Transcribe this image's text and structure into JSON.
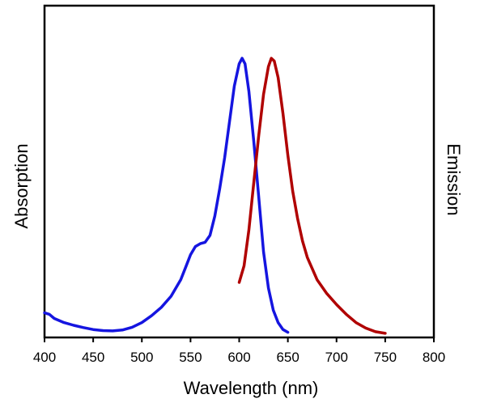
{
  "chart_data": {
    "type": "line",
    "title": "",
    "xlabel": "Wavelength (nm)",
    "ylabel_left": "Absorption",
    "ylabel_right": "Emission",
    "xlim": [
      400,
      800
    ],
    "ylim": [
      0,
      1
    ],
    "xticks": [
      400,
      450,
      500,
      550,
      600,
      650,
      700,
      750,
      800
    ],
    "grid": false,
    "legend": "none",
    "series": [
      {
        "color": "#1515e0",
        "points": [
          [
            400,
            0.08
          ],
          [
            405,
            0.075
          ],
          [
            410,
            0.06
          ],
          [
            420,
            0.045
          ],
          [
            430,
            0.035
          ],
          [
            440,
            0.027
          ],
          [
            450,
            0.02
          ],
          [
            460,
            0.016
          ],
          [
            470,
            0.015
          ],
          [
            480,
            0.018
          ],
          [
            490,
            0.028
          ],
          [
            500,
            0.045
          ],
          [
            510,
            0.07
          ],
          [
            520,
            0.1
          ],
          [
            530,
            0.14
          ],
          [
            540,
            0.2
          ],
          [
            545,
            0.245
          ],
          [
            550,
            0.29
          ],
          [
            555,
            0.32
          ],
          [
            560,
            0.33
          ],
          [
            565,
            0.335
          ],
          [
            570,
            0.36
          ],
          [
            575,
            0.43
          ],
          [
            580,
            0.53
          ],
          [
            585,
            0.64
          ],
          [
            590,
            0.77
          ],
          [
            595,
            0.9
          ],
          [
            600,
            0.98
          ],
          [
            603,
            1.0
          ],
          [
            606,
            0.98
          ],
          [
            610,
            0.88
          ],
          [
            615,
            0.7
          ],
          [
            620,
            0.5
          ],
          [
            625,
            0.3
          ],
          [
            630,
            0.17
          ],
          [
            635,
            0.09
          ],
          [
            640,
            0.045
          ],
          [
            645,
            0.02
          ],
          [
            650,
            0.01
          ]
        ]
      },
      {
        "color": "#b00000",
        "points": [
          [
            600,
            0.19
          ],
          [
            605,
            0.25
          ],
          [
            610,
            0.38
          ],
          [
            615,
            0.55
          ],
          [
            620,
            0.72
          ],
          [
            625,
            0.87
          ],
          [
            630,
            0.97
          ],
          [
            633,
            1.0
          ],
          [
            636,
            0.99
          ],
          [
            640,
            0.93
          ],
          [
            645,
            0.8
          ],
          [
            650,
            0.65
          ],
          [
            655,
            0.52
          ],
          [
            660,
            0.42
          ],
          [
            665,
            0.34
          ],
          [
            670,
            0.28
          ],
          [
            680,
            0.2
          ],
          [
            690,
            0.15
          ],
          [
            700,
            0.11
          ],
          [
            710,
            0.075
          ],
          [
            720,
            0.045
          ],
          [
            730,
            0.025
          ],
          [
            740,
            0.012
          ],
          [
            750,
            0.006
          ]
        ]
      }
    ]
  }
}
